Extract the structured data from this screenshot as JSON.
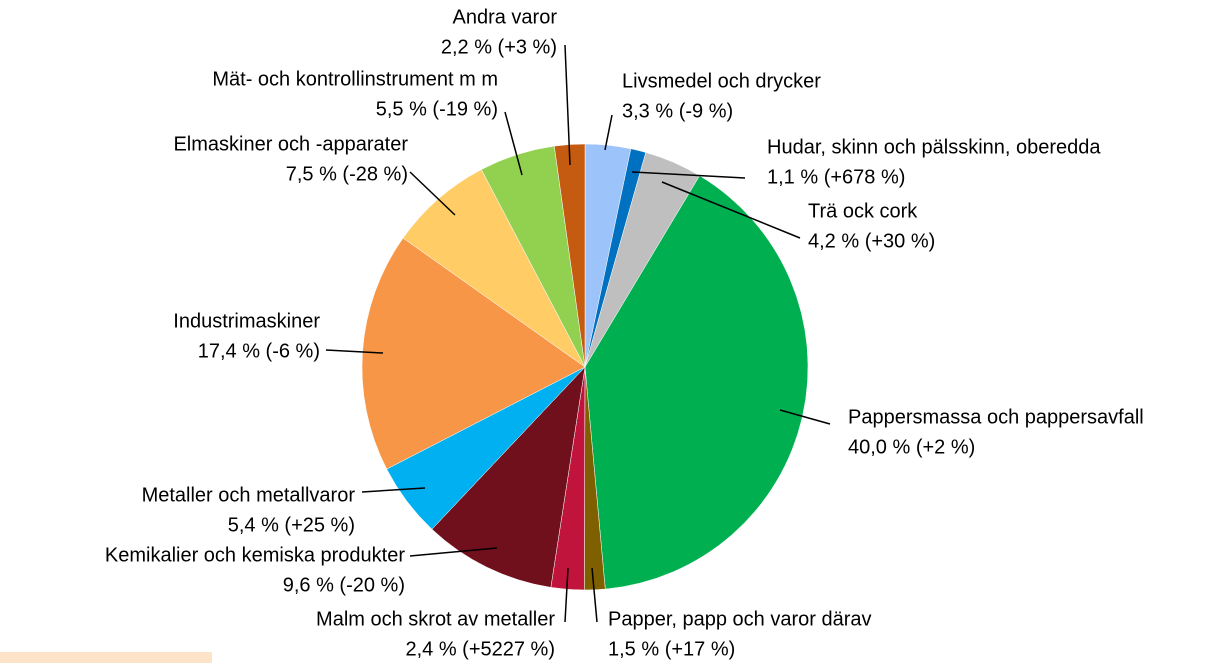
{
  "chart_data": {
    "type": "pie",
    "categories": [
      "Livsmedel och drycker",
      "Hudar, skinn och pälsskinn, oberedda",
      "Trä ock cork",
      "Pappersmassa och pappersavfall",
      "Papper, papp och varor därav",
      "Malm och skrot av metaller",
      "Kemikalier och kemiska produkter",
      "Metaller och metallvaror",
      "Industrimaskiner",
      "Elmaskiner och -apparater",
      "Mät- och kontrollinstrument m m",
      "Andra varor"
    ],
    "values": [
      3.3,
      1.1,
      4.2,
      40.0,
      1.5,
      2.4,
      9.6,
      5.4,
      17.4,
      7.5,
      5.5,
      2.2
    ],
    "value_labels": [
      "3,3 % (-9 %)",
      "1,1 % (+678 %)",
      "4,2 % (+30 %)",
      "40,0 % (+2 %)",
      "1,5 % (+17 %)",
      "2,4 % (+5227 %)",
      "9,6 % (-20 %)",
      "5,4 % (+25 %)",
      "17,4 % (-6 %)",
      "7,5 % (-28 %)",
      "5,5 % (-19 %)",
      "2,2 % (+3 %)"
    ],
    "colors": [
      "#9dc3fb",
      "#0070c0",
      "#bfbfbf",
      "#00b050",
      "#7f6000",
      "#c0143c",
      "#70101c",
      "#00b0f0",
      "#f79646",
      "#ffcc66",
      "#92d050",
      "#c55a11"
    ]
  }
}
